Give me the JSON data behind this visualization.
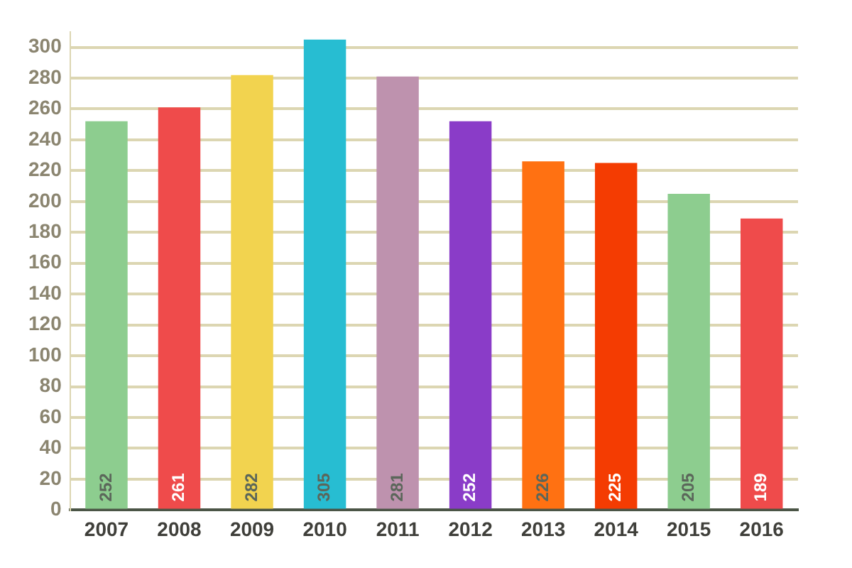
{
  "chart_data": {
    "type": "bar",
    "categories": [
      "2007",
      "2008",
      "2009",
      "2010",
      "2011",
      "2012",
      "2013",
      "2014",
      "2015",
      "2016"
    ],
    "values": [
      252,
      261,
      282,
      305,
      281,
      252,
      226,
      225,
      205,
      189
    ],
    "colors": [
      "#8dcd8f",
      "#ef4b4b",
      "#f2d34f",
      "#27bdd2",
      "#be92ae",
      "#8a3cc8",
      "#ff7112",
      "#f43c02",
      "#8dcd8f",
      "#ef4b4b"
    ],
    "ylim": [
      0,
      310
    ],
    "yticks": [
      0,
      20,
      40,
      60,
      80,
      100,
      120,
      140,
      160,
      180,
      200,
      220,
      240,
      260,
      280,
      300
    ],
    "grid": "y",
    "legend": false,
    "data_labels": true
  }
}
